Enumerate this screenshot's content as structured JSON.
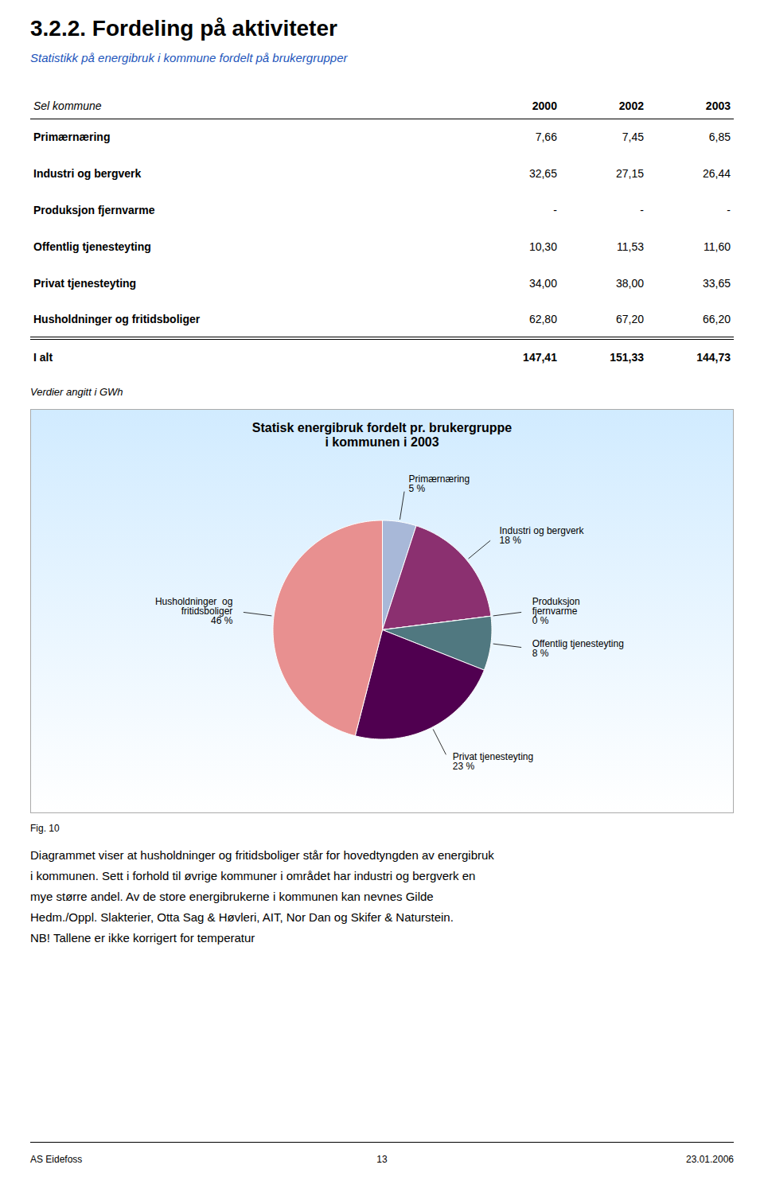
{
  "title": "3.2.2. Fordeling på aktiviteter",
  "subtitle": "Statistikk på energibruk i kommune fordelt på brukergrupper",
  "table": {
    "header": [
      "Sel kommune",
      "2000",
      "2002",
      "2003"
    ],
    "rows": [
      [
        "Primærnæring",
        "7,66",
        "7,45",
        "6,85"
      ],
      [
        "Industri og bergverk",
        "32,65",
        "27,15",
        "26,44"
      ],
      [
        "Produksjon fjernvarme",
        "-",
        "-",
        "-"
      ],
      [
        "Offentlig tjenesteyting",
        "10,30",
        "11,53",
        "11,60"
      ],
      [
        "Privat tjenesteyting",
        "34,00",
        "38,00",
        "33,65"
      ],
      [
        "Husholdninger og fritidsboliger",
        "62,80",
        "67,20",
        "66,20"
      ]
    ],
    "total": [
      "I alt",
      "147,41",
      "151,33",
      "144,73"
    ]
  },
  "footer_note": "Verdier angitt i GWh",
  "chart_data": {
    "type": "pie",
    "title": "Statisk energibruk fordelt pr. brukergruppe\ni kommunen i 2003",
    "categories": [
      "Primærnæring",
      "Industri og bergverk",
      "Produksjon\nfjernvarme",
      "Offentlig tjenesteyting",
      "Privat tjenesteyting",
      "Husholdninger  og\nfritidsboliger"
    ],
    "values": [
      5,
      18,
      0,
      8,
      23,
      46
    ],
    "value_labels": [
      "5 %",
      "18 %",
      "0 %",
      "8 %",
      "23 %",
      "46 %"
    ],
    "colors": [
      "#A8B8D8",
      "#8B3070",
      "#C0E8E8",
      "#507880",
      "#500050",
      "#E89090"
    ],
    "data_labels": true
  },
  "fig_label": "Fig. 10",
  "body_lines": [
    "Diagrammet viser at husholdninger og fritidsboliger står for hovedtyngden av energibruk",
    "i kommunen. Sett i forhold til øvrige kommuner i området har industri og bergverk en",
    "mye større andel. Av de store energibrukerne i kommunen kan nevnes Gilde",
    "Hedm./Oppl. Slakterier, Otta Sag & Høvleri, AIT, Nor Dan og Skifer & Naturstein.",
    "NB! Tallene er ikke korrigert for temperatur"
  ],
  "footer": {
    "left": "AS Eidefoss",
    "center": "13",
    "right": "23.01.2006"
  }
}
